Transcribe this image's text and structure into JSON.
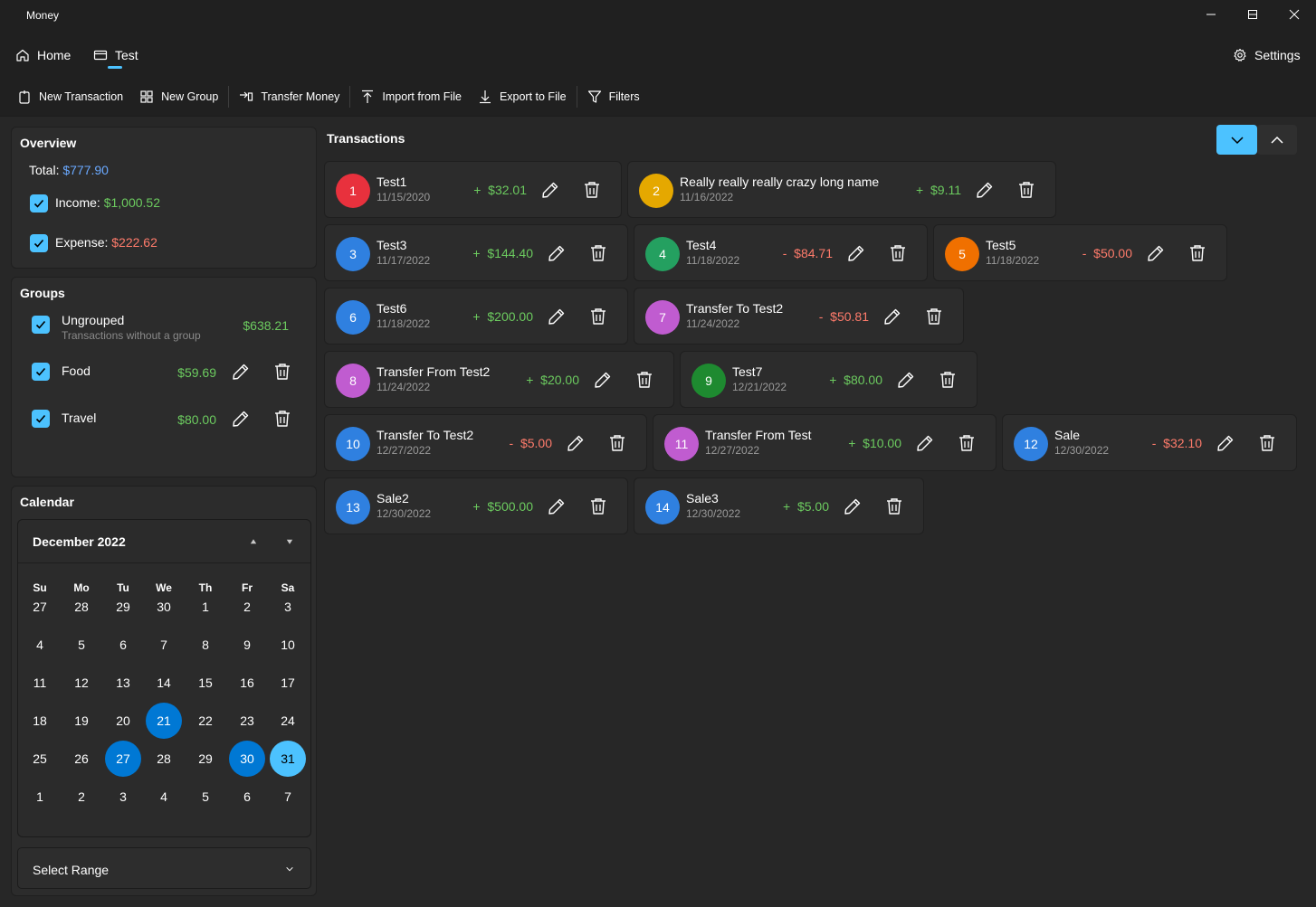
{
  "window": {
    "title": "Money"
  },
  "nav": {
    "home": "Home",
    "test": "Test",
    "settings": "Settings"
  },
  "commands": {
    "new_transaction": "New Transaction",
    "new_group": "New Group",
    "transfer_money": "Transfer Money",
    "import_file": "Import from File",
    "export_file": "Export to File",
    "filters": "Filters"
  },
  "overview": {
    "title": "Overview",
    "total_label": "Total:",
    "total_value": "$777.90",
    "income_label": "Income:",
    "income_value": "$1,000.52",
    "expense_label": "Expense:",
    "expense_value": "$222.62"
  },
  "groups": {
    "title": "Groups",
    "ungrouped": {
      "name": "Ungrouped",
      "desc": "Transactions without a group",
      "amount": "$638.21"
    },
    "food": {
      "name": "Food",
      "amount": "$59.69"
    },
    "travel": {
      "name": "Travel",
      "amount": "$80.00"
    }
  },
  "calendar": {
    "title": "Calendar",
    "month": "December 2022",
    "weekdays": [
      "Su",
      "Mo",
      "Tu",
      "We",
      "Th",
      "Fr",
      "Sa"
    ],
    "days": [
      "27",
      "28",
      "29",
      "30",
      "1",
      "2",
      "3",
      "4",
      "5",
      "6",
      "7",
      "8",
      "9",
      "10",
      "11",
      "12",
      "13",
      "14",
      "15",
      "16",
      "17",
      "18",
      "19",
      "20",
      "21",
      "22",
      "23",
      "24",
      "25",
      "26",
      "27",
      "28",
      "29",
      "30",
      "31",
      "1",
      "2",
      "3",
      "4",
      "5",
      "6",
      "7"
    ],
    "select_range": "Select Range"
  },
  "transactions": {
    "title": "Transactions",
    "items": [
      {
        "id": "1",
        "name": "Test1",
        "date": "11/15/2020",
        "sign": "+",
        "amount": "$32.01",
        "color": "#e8313d"
      },
      {
        "id": "2",
        "name": "Really really really crazy long name",
        "date": "11/16/2022",
        "sign": "+",
        "amount": "$9.11",
        "color": "#e5a800"
      },
      {
        "id": "3",
        "name": "Test3",
        "date": "11/17/2022",
        "sign": "+",
        "amount": "$144.40",
        "color": "#2f80e0"
      },
      {
        "id": "4",
        "name": "Test4",
        "date": "11/18/2022",
        "sign": "-",
        "amount": "$84.71",
        "color": "#24a060"
      },
      {
        "id": "5",
        "name": "Test5",
        "date": "11/18/2022",
        "sign": "-",
        "amount": "$50.00",
        "color": "#f07000"
      },
      {
        "id": "6",
        "name": "Test6",
        "date": "11/18/2022",
        "sign": "+",
        "amount": "$200.00",
        "color": "#2f80e0"
      },
      {
        "id": "7",
        "name": "Transfer To Test2",
        "date": "11/24/2022",
        "sign": "-",
        "amount": "$50.81",
        "color": "#c05cd0"
      },
      {
        "id": "8",
        "name": "Transfer From Test2",
        "date": "11/24/2022",
        "sign": "+",
        "amount": "$20.00",
        "color": "#c05cd0"
      },
      {
        "id": "9",
        "name": "Test7",
        "date": "12/21/2022",
        "sign": "+",
        "amount": "$80.00",
        "color": "#1e8a30"
      },
      {
        "id": "10",
        "name": "Transfer To Test2",
        "date": "12/27/2022",
        "sign": "-",
        "amount": "$5.00",
        "color": "#2f80e0"
      },
      {
        "id": "11",
        "name": "Transfer From Test",
        "date": "12/27/2022",
        "sign": "+",
        "amount": "$10.00",
        "color": "#c05cd0"
      },
      {
        "id": "12",
        "name": "Sale",
        "date": "12/30/2022",
        "sign": "-",
        "amount": "$32.10",
        "color": "#2f80e0"
      },
      {
        "id": "13",
        "name": "Sale2",
        "date": "12/30/2022",
        "sign": "+",
        "amount": "$500.00",
        "color": "#2f80e0"
      },
      {
        "id": "14",
        "name": "Sale3",
        "date": "12/30/2022",
        "sign": "+",
        "amount": "$5.00",
        "color": "#2f80e0"
      }
    ]
  }
}
